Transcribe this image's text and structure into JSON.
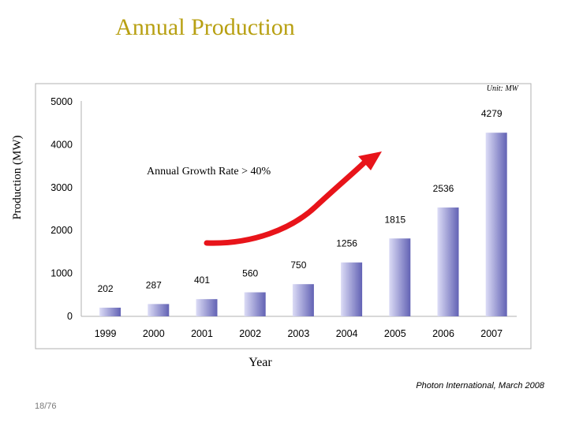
{
  "slide": {
    "title": "Annual Production",
    "source": "Photon International, March 2008",
    "page": "18/76"
  },
  "colors": {
    "title": "#b8a012",
    "bar_light": "#dcdcf6",
    "bar_dark": "#6262b4",
    "arrow": "#e8141a"
  },
  "chart_data": {
    "type": "bar",
    "title": "",
    "xlabel": "Year",
    "ylabel": "Production (MW)",
    "unit_note": "Unit: MW",
    "annotation": "Annual Growth Rate > 40%",
    "categories": [
      "1999",
      "2000",
      "2001",
      "2002",
      "2003",
      "2004",
      "2005",
      "2006",
      "2007"
    ],
    "values": [
      202,
      287,
      401,
      560,
      750,
      1256,
      1815,
      2536,
      4279
    ],
    "ylim": [
      0,
      5000
    ],
    "yticks": [
      0,
      1000,
      2000,
      3000,
      4000,
      5000
    ],
    "grid": false,
    "legend": "none"
  }
}
